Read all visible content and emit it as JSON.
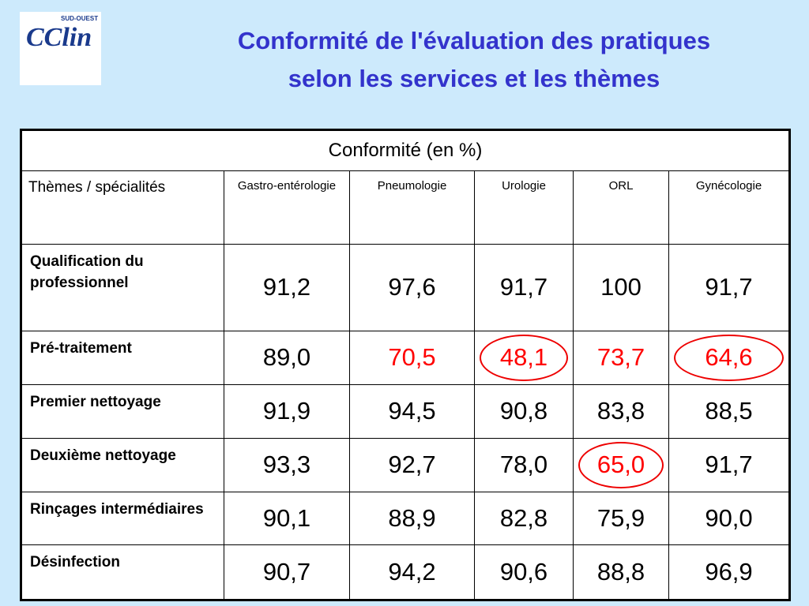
{
  "header": {
    "title_line1": "Conformité de l'évaluation des pratiques",
    "title_line2": "selon les services et les thèmes"
  },
  "logo": {
    "text": "CClin",
    "subtext": "SUD-OUEST"
  },
  "table": {
    "caption": "Conformité (en %)",
    "corner": "Thèmes / spécialités",
    "columns": [
      "Gastro-entérologie",
      "Pneumologie",
      "Urologie",
      "ORL",
      "Gynécologie"
    ],
    "rows": [
      {
        "label": "Qualification du professionnel",
        "cells": [
          {
            "text": "91,2"
          },
          {
            "text": "97,6"
          },
          {
            "text": "91,7"
          },
          {
            "text": "100"
          },
          {
            "text": "91,7"
          }
        ]
      },
      {
        "label": "Pré-traitement",
        "cells": [
          {
            "text": "89,0"
          },
          {
            "text": "70,5",
            "color": "#ff0000"
          },
          {
            "text": "48,1",
            "color": "#ff0000",
            "circled": true
          },
          {
            "text": "73,7",
            "color": "#ff0000"
          },
          {
            "text": "64,6",
            "color": "#ff0000",
            "circled": true
          }
        ]
      },
      {
        "label": "Premier nettoyage",
        "cells": [
          {
            "text": "91,9"
          },
          {
            "text": "94,5"
          },
          {
            "text": "90,8"
          },
          {
            "text": "83,8"
          },
          {
            "text": "88,5"
          }
        ]
      },
      {
        "label": "Deuxième nettoyage",
        "cells": [
          {
            "text": "93,3"
          },
          {
            "text": "92,7"
          },
          {
            "text": "78,0"
          },
          {
            "text": "65,0",
            "color": "#ff0000",
            "circled": true
          },
          {
            "text": "91,7"
          }
        ]
      },
      {
        "label": "Rinçages intermédiaires",
        "cells": [
          {
            "text": "90,1"
          },
          {
            "text": "88,9"
          },
          {
            "text": "82,8"
          },
          {
            "text": "75,9"
          },
          {
            "text": "90,0"
          }
        ]
      },
      {
        "label": "Désinfection",
        "cells": [
          {
            "text": "90,7"
          },
          {
            "text": "94,2"
          },
          {
            "text": "90,6"
          },
          {
            "text": "88,8"
          },
          {
            "text": "96,9"
          }
        ]
      }
    ]
  }
}
